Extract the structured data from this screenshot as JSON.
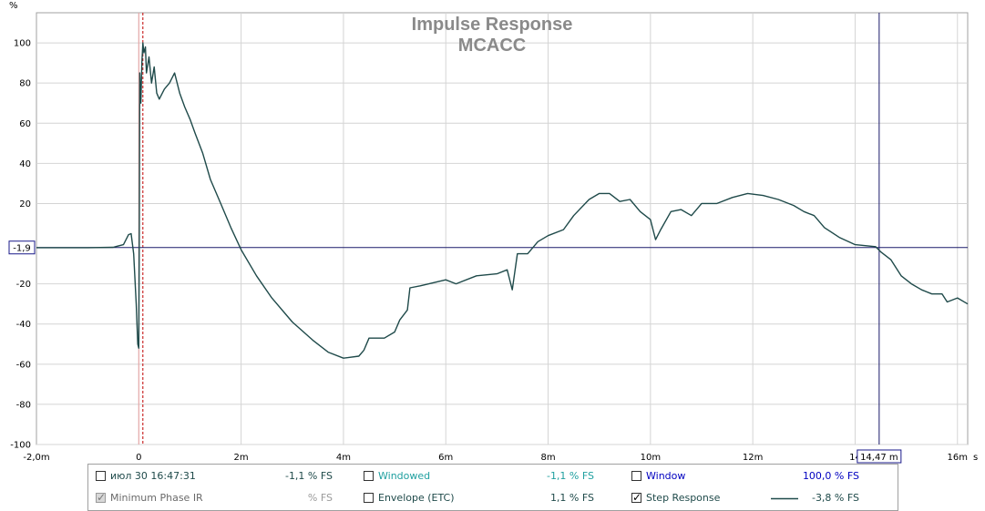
{
  "chart_data": {
    "type": "line",
    "title": "Impulse Response",
    "subtitle": "MCACC",
    "xlabel": "",
    "ylabel": "%",
    "x_unit": "s",
    "xlim": [
      -2.0,
      16.2
    ],
    "ylim": [
      -100,
      115
    ],
    "x_ticks": [
      -2,
      0,
      2,
      4,
      6,
      8,
      10,
      12,
      14,
      16
    ],
    "x_tick_labels": [
      "-2,0m",
      "0",
      "2m",
      "4m",
      "6m",
      "8m",
      "10m",
      "12m",
      "14",
      "16m"
    ],
    "y_ticks": [
      -100,
      -80,
      -60,
      -40,
      -20,
      20,
      40,
      60,
      80,
      100
    ],
    "y_tick_labels": [
      "-100",
      "-80",
      "-60",
      "-40",
      "-20",
      "20",
      "40",
      "60",
      "80",
      "100"
    ],
    "grid": true,
    "series": [
      {
        "name": "Step Response",
        "color": "#1f4a4a",
        "points": [
          [
            -2.0,
            -2.0
          ],
          [
            -1.0,
            -2.0
          ],
          [
            -0.5,
            -1.8
          ],
          [
            -0.3,
            -0.5
          ],
          [
            -0.2,
            4.5
          ],
          [
            -0.15,
            5.0
          ],
          [
            -0.1,
            -5.0
          ],
          [
            -0.05,
            -30.0
          ],
          [
            -0.02,
            -50.0
          ],
          [
            0.0,
            -52.0
          ],
          [
            0.01,
            10.0
          ],
          [
            0.02,
            85.0
          ],
          [
            0.04,
            70.0
          ],
          [
            0.06,
            90.0
          ],
          [
            0.08,
            100.0
          ],
          [
            0.1,
            95.0
          ],
          [
            0.13,
            98.0
          ],
          [
            0.15,
            85.0
          ],
          [
            0.2,
            93.0
          ],
          [
            0.25,
            80.0
          ],
          [
            0.3,
            88.0
          ],
          [
            0.35,
            75.0
          ],
          [
            0.4,
            72.0
          ],
          [
            0.5,
            77.0
          ],
          [
            0.6,
            80.0
          ],
          [
            0.7,
            85.0
          ],
          [
            0.8,
            75.0
          ],
          [
            0.9,
            68.0
          ],
          [
            1.0,
            62.0
          ],
          [
            1.1,
            55.0
          ],
          [
            1.25,
            45.0
          ],
          [
            1.4,
            32.0
          ],
          [
            1.6,
            20.0
          ],
          [
            1.8,
            8.0
          ],
          [
            2.0,
            -3.0
          ],
          [
            2.3,
            -16.0
          ],
          [
            2.6,
            -27.0
          ],
          [
            3.0,
            -39.0
          ],
          [
            3.4,
            -48.0
          ],
          [
            3.7,
            -54.0
          ],
          [
            4.0,
            -57.0
          ],
          [
            4.3,
            -56.0
          ],
          [
            4.4,
            -53.0
          ],
          [
            4.5,
            -47.0
          ],
          [
            4.8,
            -47.0
          ],
          [
            5.0,
            -44.0
          ],
          [
            5.1,
            -38.0
          ],
          [
            5.25,
            -33.0
          ],
          [
            5.3,
            -22.0
          ],
          [
            5.5,
            -21.0
          ],
          [
            6.0,
            -18.0
          ],
          [
            6.2,
            -20.0
          ],
          [
            6.6,
            -16.0
          ],
          [
            7.0,
            -15.0
          ],
          [
            7.2,
            -13.0
          ],
          [
            7.3,
            -23.0
          ],
          [
            7.4,
            -5.0
          ],
          [
            7.6,
            -5.0
          ],
          [
            7.8,
            1.0
          ],
          [
            8.0,
            4.0
          ],
          [
            8.3,
            7.0
          ],
          [
            8.5,
            14.0
          ],
          [
            8.8,
            22.0
          ],
          [
            9.0,
            25.0
          ],
          [
            9.2,
            25.0
          ],
          [
            9.4,
            21.0
          ],
          [
            9.6,
            22.0
          ],
          [
            9.8,
            16.0
          ],
          [
            10.0,
            12.0
          ],
          [
            10.1,
            2.0
          ],
          [
            10.2,
            7.0
          ],
          [
            10.4,
            16.0
          ],
          [
            10.6,
            17.0
          ],
          [
            10.8,
            14.0
          ],
          [
            11.0,
            20.0
          ],
          [
            11.3,
            20.0
          ],
          [
            11.6,
            23.0
          ],
          [
            11.9,
            25.0
          ],
          [
            12.2,
            24.0
          ],
          [
            12.5,
            22.0
          ],
          [
            12.8,
            19.0
          ],
          [
            13.0,
            16.0
          ],
          [
            13.2,
            14.0
          ],
          [
            13.4,
            8.0
          ],
          [
            13.7,
            3.0
          ],
          [
            14.0,
            -0.5
          ],
          [
            14.2,
            -1.0
          ],
          [
            14.4,
            -1.5
          ],
          [
            14.5,
            -4.0
          ],
          [
            14.7,
            -8.0
          ],
          [
            14.9,
            -16.0
          ],
          [
            15.1,
            -20.0
          ],
          [
            15.3,
            -23.0
          ],
          [
            15.5,
            -25.0
          ],
          [
            15.7,
            -25.0
          ],
          [
            15.8,
            -29.0
          ],
          [
            16.0,
            -27.0
          ],
          [
            16.2,
            -30.0
          ]
        ]
      }
    ],
    "cursor": {
      "x": 14.47,
      "x_label": "14,47 m",
      "y": -1.9,
      "y_label": "-1,9"
    },
    "markers": [
      0.0,
      0.08
    ],
    "legend_placement": "bottom"
  },
  "legend": {
    "rows": [
      [
        {
          "label": "июл 30 16:47:31",
          "value": "-1,1 % FS",
          "checked": false,
          "disabled": false,
          "label_color": "#1f4a4a",
          "value_color": "#1f4a4a"
        },
        {
          "label": "Windowed",
          "value": "-1,1 % FS",
          "checked": false,
          "disabled": false,
          "label_color": "#20a0a0",
          "value_color": "#20a0a0"
        },
        {
          "label": "Window",
          "value": "100,0 % FS",
          "checked": false,
          "disabled": false,
          "label_color": "#0000c0",
          "value_color": "#0000c0"
        }
      ],
      [
        {
          "label": "Minimum Phase IR",
          "value": "% FS",
          "checked": true,
          "disabled": true,
          "label_color": "#6a6a6a",
          "value_color": "#9a9a9a"
        },
        {
          "label": "Envelope (ETC)",
          "value": "1,1 % FS",
          "checked": false,
          "disabled": false,
          "label_color": "#1f4a4a",
          "value_color": "#1f4a4a"
        },
        {
          "label": "Step Response",
          "value": "-3,8 % FS",
          "checked": true,
          "disabled": false,
          "label_color": "#1f4a4a",
          "value_color": "#1f4a4a"
        }
      ]
    ]
  }
}
